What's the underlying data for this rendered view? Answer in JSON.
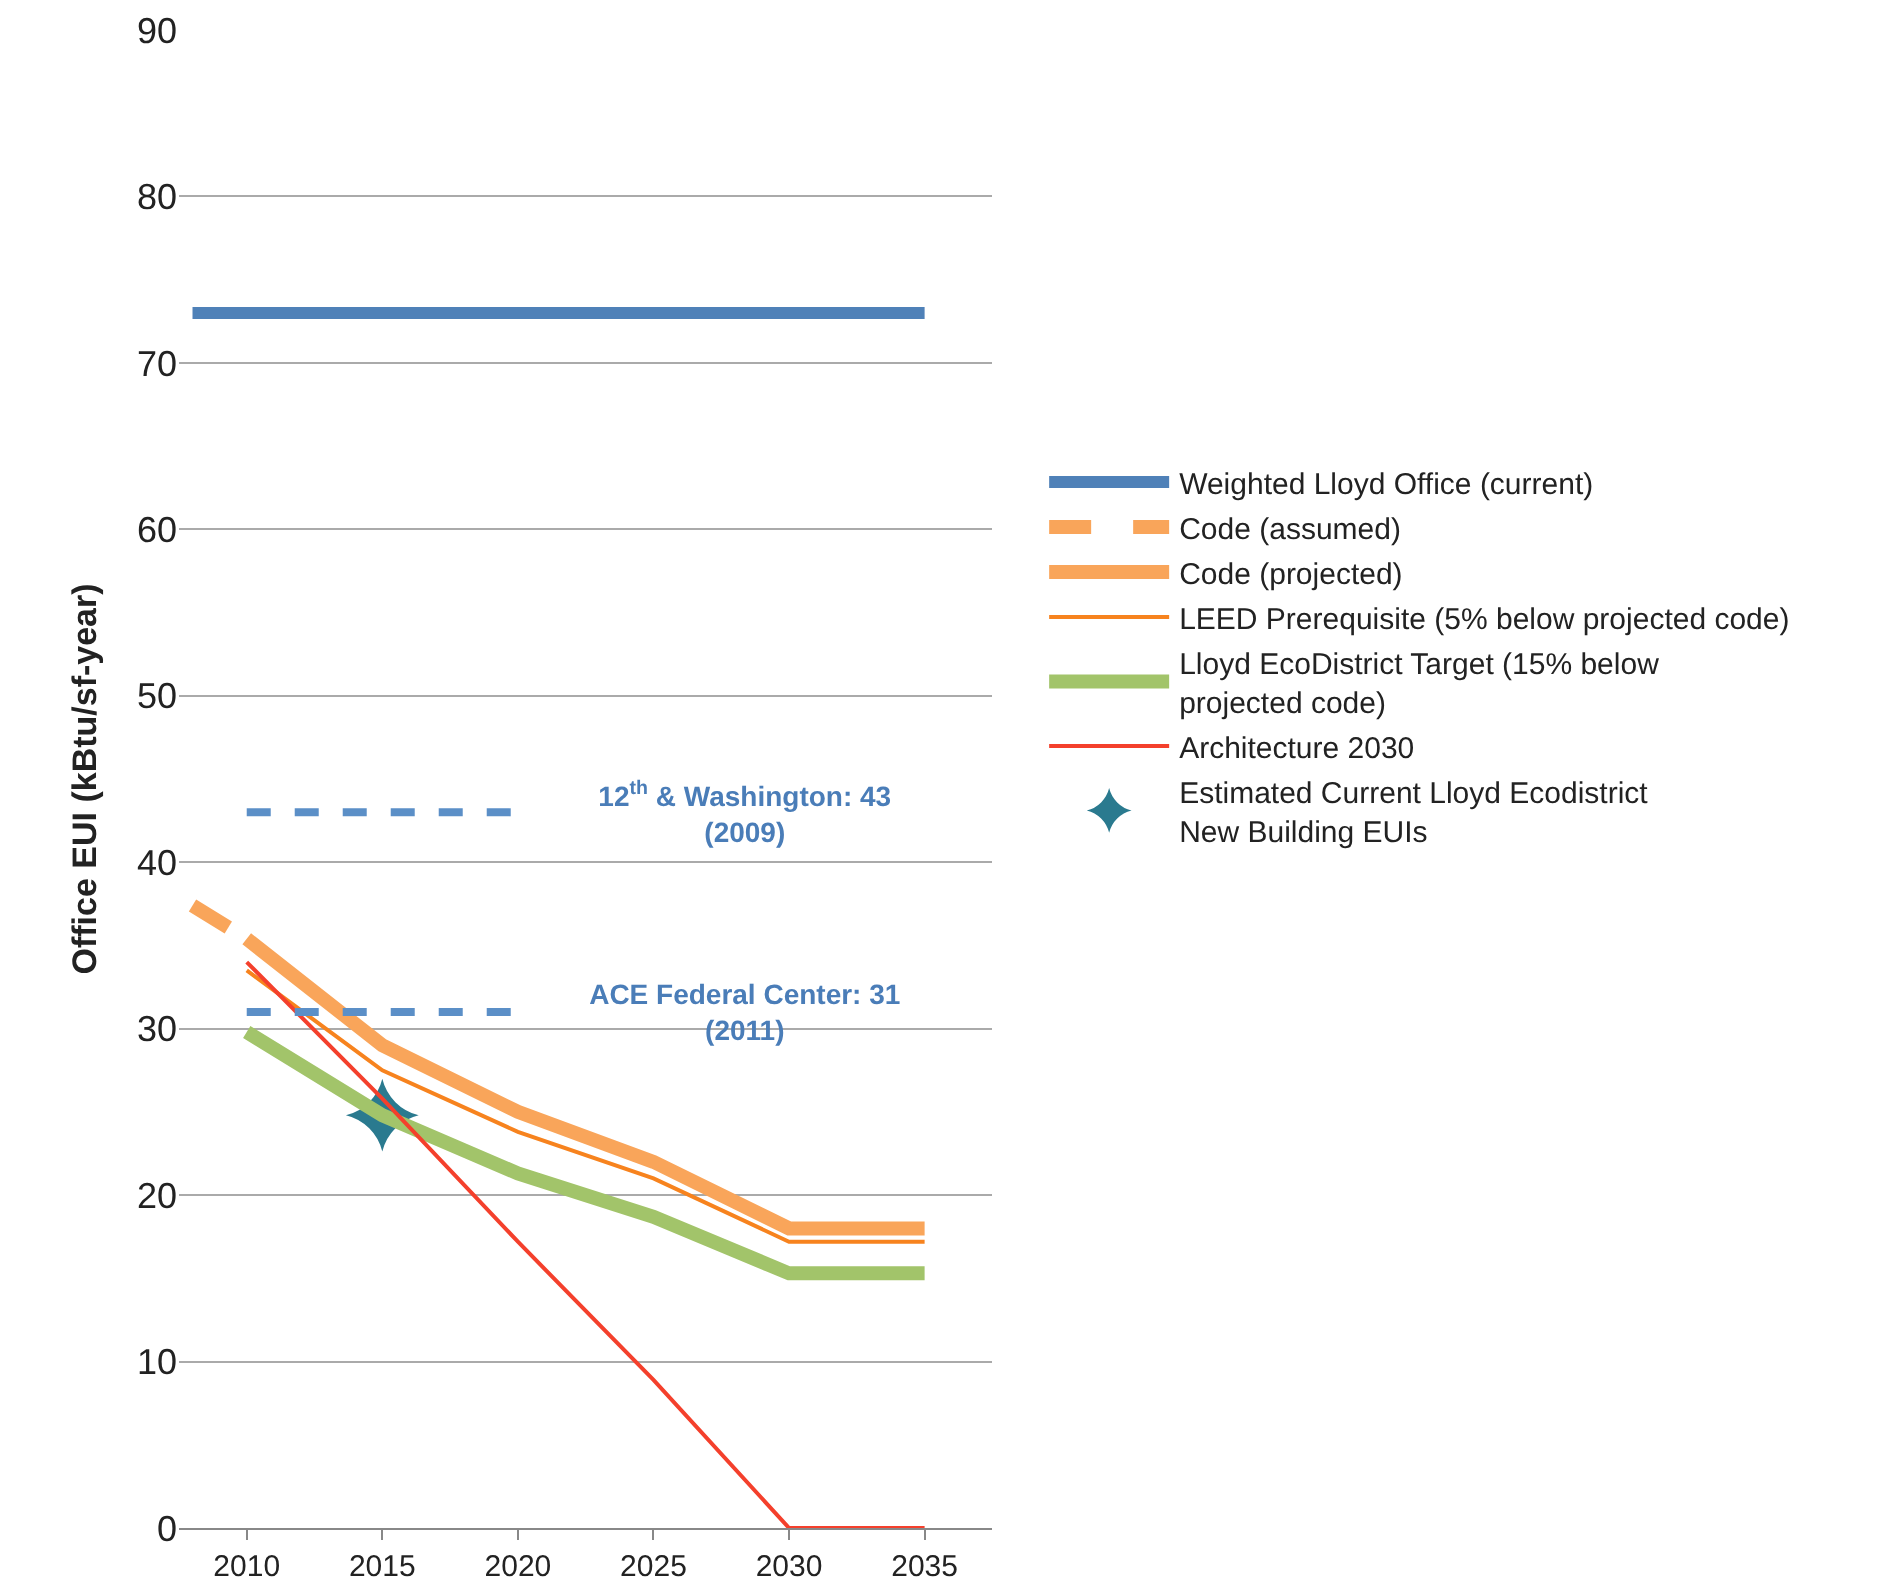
{
  "chart_data": {
    "type": "line",
    "ylabel": "Office EUI (kBtu/sf-year)",
    "xlim": [
      2007.5,
      2037.5
    ],
    "xticks": [
      2010,
      2015,
      2020,
      2025,
      2030,
      2035
    ],
    "ylim": [
      0,
      90
    ],
    "yticks": [
      0,
      10,
      20,
      30,
      40,
      50,
      60,
      70,
      80,
      90
    ],
    "grid": "y",
    "legend": "right",
    "marker": "none",
    "line_style": "solid",
    "series": [
      {
        "name": "Weighted Lloyd Office (current)",
        "color": "#4f81b8",
        "x": [
          2008,
          2035
        ],
        "values": [
          73,
          73
        ]
      },
      {
        "name": "Code (assumed)",
        "color": "#f9a55a",
        "line_style": "dashed",
        "x": [
          2008,
          2010
        ],
        "values": [
          37.4,
          35.4
        ]
      },
      {
        "name": "Code (projected)",
        "color": "#f9a55a",
        "x": [
          2010,
          2015,
          2020,
          2025,
          2030,
          2035
        ],
        "values": [
          35.4,
          29,
          25,
          22,
          18,
          18
        ]
      },
      {
        "name": "LEED Prerequisite (5% below projected code)",
        "color": "#f7831e",
        "x": [
          2010,
          2015,
          2020,
          2025,
          2030,
          2035
        ],
        "values": [
          33.5,
          27.5,
          23.8,
          21,
          17.2,
          17.2
        ]
      },
      {
        "name": "Lloyd EcoDistrict Target (15% below\nprojected code)",
        "color": "#a2c46a",
        "x": [
          2010,
          2015,
          2020,
          2025,
          2030,
          2035
        ],
        "values": [
          29.8,
          24.8,
          21.3,
          18.7,
          15.3,
          15.3
        ]
      },
      {
        "name": "Architecture 2030",
        "color": "#f4402c",
        "x": [
          2010,
          2015,
          2020,
          2025,
          2030,
          2035
        ],
        "values": [
          34,
          25.8,
          17.2,
          8.9,
          0,
          0
        ]
      },
      {
        "name": "Estimated Current Lloyd Ecodistrict\nNew Building EUIs",
        "type": "scatter",
        "marker": "star",
        "color": "#2a7a8f",
        "x": [
          2015
        ],
        "values": [
          24.8
        ]
      },
      {
        "color": "#5b8fc7",
        "line_style": "dashed",
        "x": [
          2010,
          2020
        ],
        "values": [
          43,
          43
        ]
      },
      {
        "color": "#5b8fc7",
        "line_style": "dashed",
        "x": [
          2010,
          2020
        ],
        "values": [
          31,
          31
        ]
      }
    ],
    "annotations": [
      {
        "text": "12$^{th}$ & Washington: 43\n(2009)",
        "x": 2020,
        "y": 43
      },
      {
        "text": "ACE Federal Center: 31\n(2011)",
        "x": 2020,
        "y": 31
      }
    ]
  }
}
